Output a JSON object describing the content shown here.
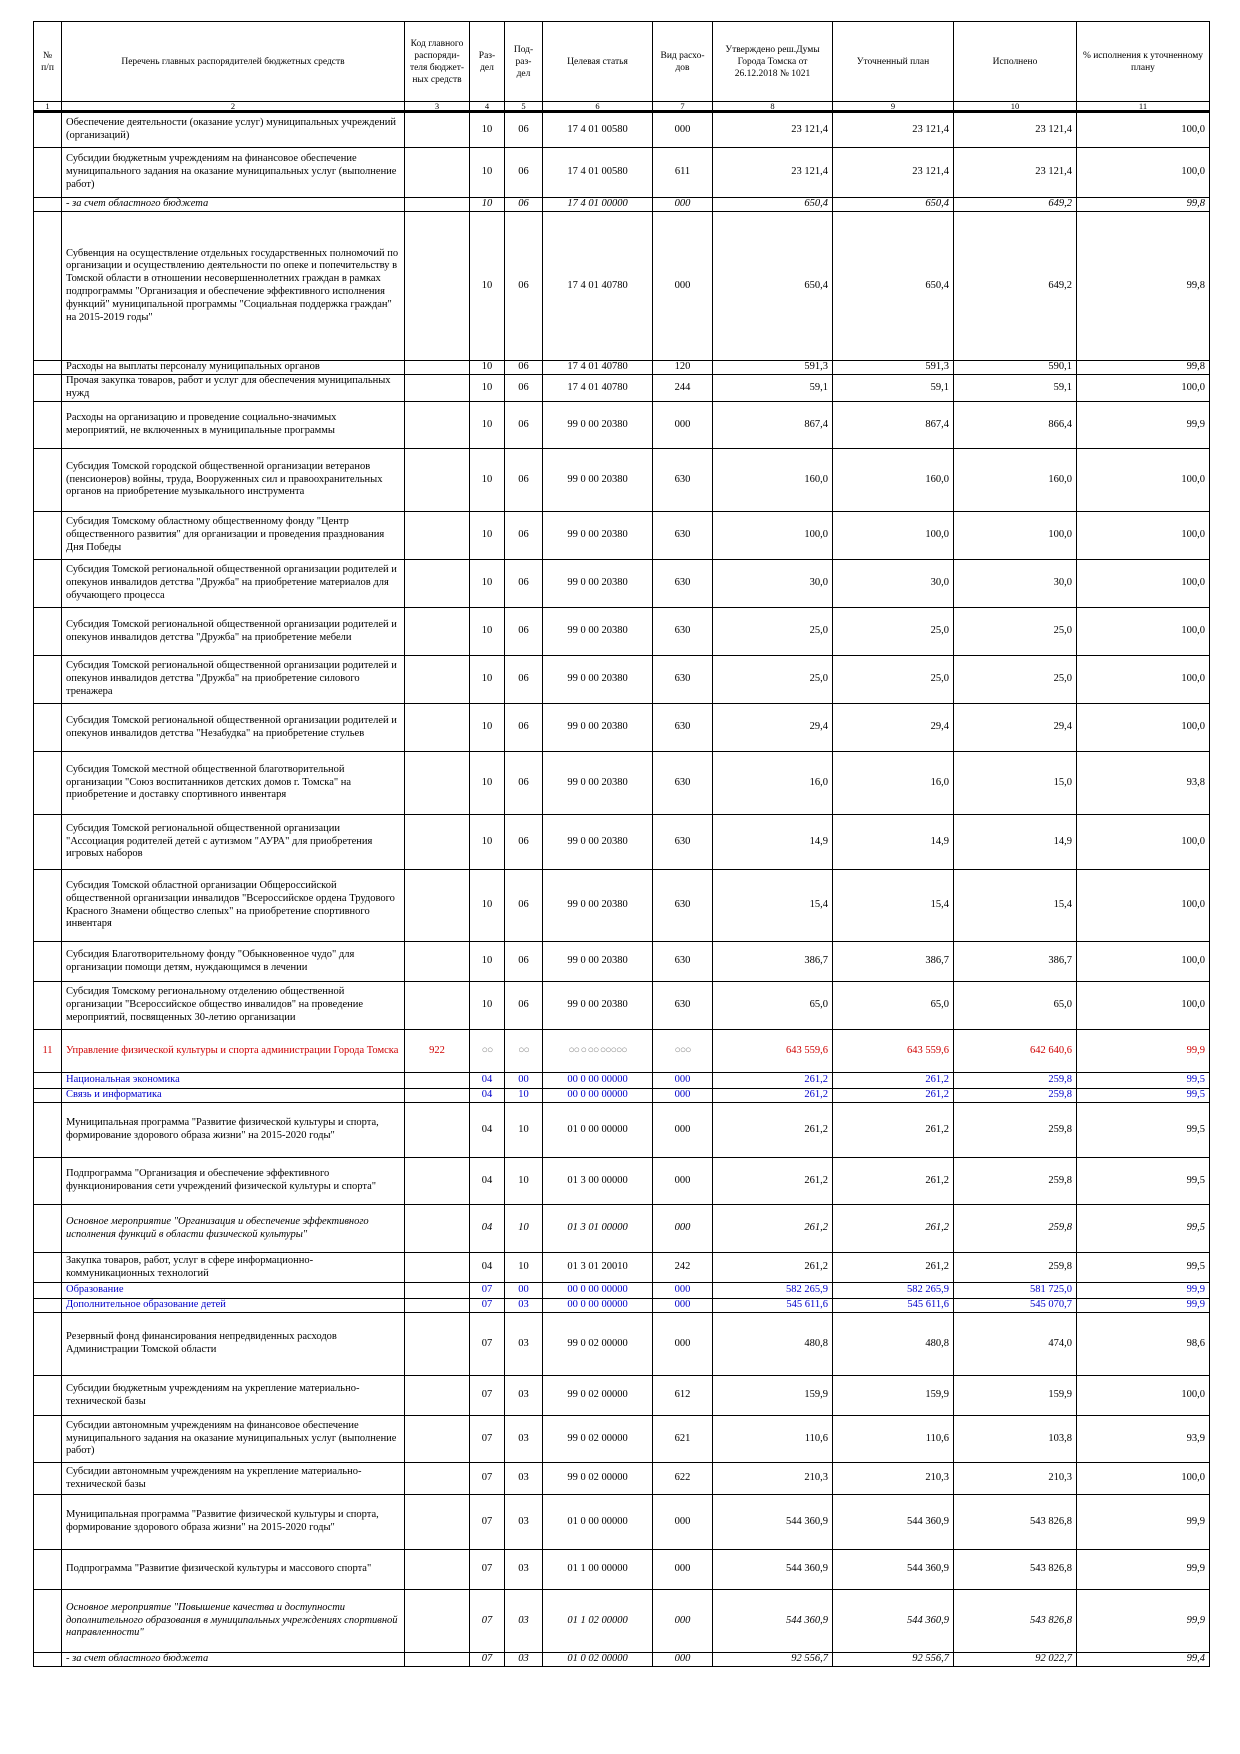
{
  "headers": [
    "№ п/п",
    "Перечень главных распорядителей бюджетных средств",
    "Код главного распоряди- теля бюджет- ных средств",
    "Раз- дел",
    "Под- раз- дел",
    "Целевая статья",
    "Вид расхо- дов",
    "Утверждено реш.Думы Города Томска от 26.12.2018 № 1021",
    "Уточненный план",
    "Исполнено",
    "% исполнения к уточненному плану"
  ],
  "column_numbers": [
    "1",
    "2",
    "3",
    "4",
    "5",
    "6",
    "7",
    "8",
    "9",
    "10",
    "11"
  ],
  "rows": [
    {
      "h": 36,
      "s": "",
      "d": "  Обеспечение деятельности (оказание услуг)  муниципальных учреждений (организаций)",
      "k": "",
      "r": "10",
      "p": "06",
      "t": "17 4 01 00580",
      "v": "000",
      "a": "23 121,4",
      "b": "23 121,4",
      "e": "23 121,4",
      "pc": "100,0"
    },
    {
      "h": 50,
      "s": "",
      "d": "    Субсидии бюджетным учреждениям на финансовое обеспечение муниципального задания на оказание муниципальных услуг (выполнение работ)",
      "k": "",
      "r": "10",
      "p": "06",
      "t": "17 4 01 00580",
      "v": "611",
      "a": "23 121,4",
      "b": "23 121,4",
      "e": "23 121,4",
      "pc": "100,0"
    },
    {
      "h": 14,
      "s": "i",
      "d": "  - за счет областного бюджета",
      "k": "",
      "r": "10",
      "p": "06",
      "t": "17 4 01 00000",
      "v": "000",
      "a": "650,4",
      "b": "650,4",
      "e": "649,2",
      "pc": "99,8"
    },
    {
      "h": 149,
      "s": "b",
      "d": "  Субвенция на осуществление отдельных государственных полномочий по организации и осуществлению деятельности по опеке и попечительству в Томской области в отношении несовершеннолетних граждан в рамках подпрограммы \"Организация и обеспечение эффективного исполнения функций\" муниципальной программы \"Социальная поддержка граждан\" на 2015-2019 годы\"",
      "k": "",
      "r": "10",
      "p": "06",
      "t": "17 4 01 40780",
      "v": "000",
      "a": "650,4",
      "b": "650,4",
      "e": "649,2",
      "pc": "99,8"
    },
    {
      "h": 14,
      "s": "",
      "d": "    Расходы на выплаты персоналу муниципальных органов",
      "k": "",
      "r": "10",
      "p": "06",
      "t": "17 4 01 40780",
      "v": "120",
      "a": "591,3",
      "b": "591,3",
      "e": "590,1",
      "pc": "99,8"
    },
    {
      "h": 27,
      "s": "",
      "d": "    Прочая закупка товаров, работ и услуг для обеспечения муниципальных нужд",
      "k": "",
      "r": "10",
      "p": "06",
      "t": "17 4 01 40780",
      "v": "244",
      "a": "59,1",
      "b": "59,1",
      "e": "59,1",
      "pc": "100,0"
    },
    {
      "h": 47,
      "s": "b",
      "d": "Расходы на организацию и проведение социально-значимых мероприятий, не включенных в муниципальные программы",
      "k": "",
      "r": "10",
      "p": "06",
      "t": "99 0 00 20380",
      "v": "000",
      "a": "867,4",
      "b": "867,4",
      "e": "866,4",
      "pc": "99,9"
    },
    {
      "h": 63,
      "s": "",
      "d": "Субсидия Томской городской общественной организации ветеранов (пенсионеров) войны, труда, Вооруженных сил и правоохранительных органов на приобретение музыкального инструмента",
      "k": "",
      "r": "10",
      "p": "06",
      "t": "99 0 00 20380",
      "v": "630",
      "a": "160,0",
      "b": "160,0",
      "e": "160,0",
      "pc": "100,0"
    },
    {
      "h": 48,
      "s": "",
      "d": "Субсидия Томскому областному общественному фонду \"Центр общественного развития\" для организации и проведения празднования Дня Победы",
      "k": "",
      "r": "10",
      "p": "06",
      "t": "99 0 00 20380",
      "v": "630",
      "a": "100,0",
      "b": "100,0",
      "e": "100,0",
      "pc": "100,0"
    },
    {
      "h": 48,
      "s": "",
      "d": "Субсидия Томской региональной общественной организации родителей и опекунов инвалидов детства \"Дружба\" на приобретение материалов для обучающего процесса",
      "k": "",
      "r": "10",
      "p": "06",
      "t": "99 0 00 20380",
      "v": "630",
      "a": "30,0",
      "b": "30,0",
      "e": "30,0",
      "pc": "100,0"
    },
    {
      "h": 48,
      "s": "",
      "d": "Субсидия Томской региональной общественной организации родителей и опекунов инвалидов детства \"Дружба\" на приобретение мебели",
      "k": "",
      "r": "10",
      "p": "06",
      "t": "99 0 00 20380",
      "v": "630",
      "a": "25,0",
      "b": "25,0",
      "e": "25,0",
      "pc": "100,0"
    },
    {
      "h": 48,
      "s": "",
      "d": "Субсидия Томской региональной общественной организации родителей и опекунов инвалидов детства \"Дружба\" на приобретение силового тренажера",
      "k": "",
      "r": "10",
      "p": "06",
      "t": "99 0 00 20380",
      "v": "630",
      "a": "25,0",
      "b": "25,0",
      "e": "25,0",
      "pc": "100,0"
    },
    {
      "h": 48,
      "s": "",
      "d": "Субсидия Томской региональной общественной организации родителей и опекунов инвалидов детства \"Незабудка\" на приобретение стульев",
      "k": "",
      "r": "10",
      "p": "06",
      "t": "99 0 00 20380",
      "v": "630",
      "a": "29,4",
      "b": "29,4",
      "e": "29,4",
      "pc": "100,0"
    },
    {
      "h": 63,
      "s": "",
      "d": "Субсидия Томской местной общественной благотворительной организации \"Союз воспитанников детских домов г. Томска\" на приобретение и доставку спортивного инвентаря",
      "k": "",
      "r": "10",
      "p": "06",
      "t": "99 0 00 20380",
      "v": "630",
      "a": "16,0",
      "b": "16,0",
      "e": "15,0",
      "pc": "93,8"
    },
    {
      "h": 55,
      "s": "",
      "d": "Субсидия Томской региональной общественной организации \"Ассоциация родителей детей с аутизмом \"АУРА\" для приобретения игровых наборов",
      "k": "",
      "r": "10",
      "p": "06",
      "t": "99 0 00 20380",
      "v": "630",
      "a": "14,9",
      "b": "14,9",
      "e": "14,9",
      "pc": "100,0"
    },
    {
      "h": 72,
      "s": "",
      "d": "Субсидия Томской областной организации Общероссийской общественной организации инвалидов \"Всероссийское ордена Трудового Красного Знамени общество слепых\" на приобретение спортивного инвентаря",
      "k": "",
      "r": "10",
      "p": "06",
      "t": "99 0 00 20380",
      "v": "630",
      "a": "15,4",
      "b": "15,4",
      "e": "15,4",
      "pc": "100,0"
    },
    {
      "h": 40,
      "s": "",
      "d": "Субсидия Благотворительному фонду \"Обыкновенное чудо\" для организации помощи детям, нуждающимся в лечении",
      "k": "",
      "r": "10",
      "p": "06",
      "t": "99 0 00 20380",
      "v": "630",
      "a": "386,7",
      "b": "386,7",
      "e": "386,7",
      "pc": "100,0"
    },
    {
      "h": 48,
      "s": "",
      "d": "Субсидия Томскому региональному отделению общественной организации \"Всероссийское общество инвалидов\" на проведение мероприятий, посвященных 30-летию организации",
      "k": "",
      "r": "10",
      "p": "06",
      "t": "99 0 00 20380",
      "v": "630",
      "a": "65,0",
      "b": "65,0",
      "e": "65,0",
      "pc": "100,0"
    },
    {
      "h": 43,
      "s": "red",
      "n": "11",
      "d": "Управление физической культуры и спорта администрации Города Томска",
      "k": "922",
      "r": "○○",
      "p": "○○",
      "t": "○○ ○ ○○ ○○○○○",
      "v": "○○○",
      "a": "643 559,6",
      "b": "643 559,6",
      "e": "642 640,6",
      "pc": "99,9"
    },
    {
      "h": 16,
      "s": "blue big",
      "d": "Национальная экономика",
      "k": "",
      "r": "04",
      "p": "00",
      "t": "00 0 00 00000",
      "v": "000",
      "a": "261,2",
      "b": "261,2",
      "e": "259,8",
      "pc": "99,5"
    },
    {
      "h": 14,
      "s": "blue sm",
      "d": "Связь и информатика",
      "k": "",
      "r": "04",
      "p": "10",
      "t": "00 0 00 00000",
      "v": "000",
      "a": "261,2",
      "b": "261,2",
      "e": "259,8",
      "pc": "99,5"
    },
    {
      "h": 55,
      "s": "b",
      "d": "Муниципальная программа \"Развитие физической культуры и спорта, формирование здорового образа жизни\" на 2015-2020 годы\"",
      "k": "",
      "r": "04",
      "p": "10",
      "t": "01 0 00 00000",
      "v": "000",
      "a": "261,2",
      "b": "261,2",
      "e": "259,8",
      "pc": "99,5"
    },
    {
      "h": 47,
      "s": "b",
      "d": "Подпрограмма \"Организация и обеспечение эффективного функционирования сети учреждений физической культуры и спорта\"",
      "k": "",
      "r": "04",
      "p": "10",
      "t": "01 3 00 00000",
      "v": "000",
      "a": "261,2",
      "b": "261,2",
      "e": "259,8",
      "pc": "99,5"
    },
    {
      "h": 48,
      "s": "bi",
      "d": " Основное мероприятие \"Организация и обеспечение эффективного исполнения функций в области физической культуры\"",
      "k": "",
      "r": "04",
      "p": "10",
      "t": "01 3 01 00000",
      "v": "000",
      "a": "261,2",
      "b": "261,2",
      "e": "259,8",
      "pc": "99,5"
    },
    {
      "h": 30,
      "s": "",
      "d": "    Закупка товаров, работ, услуг в сфере информационно-коммуникационных технологий",
      "k": "",
      "r": "04",
      "p": "10",
      "t": "01 3 01 20010",
      "v": "242",
      "a": "261,2",
      "b": "261,2",
      "e": "259,8",
      "pc": "99,5"
    },
    {
      "h": 16,
      "s": "blue big",
      "d": "Образование",
      "k": "",
      "r": "07",
      "p": "00",
      "t": "00 0 00 00000",
      "v": "000",
      "a": "582 265,9",
      "b": "582 265,9",
      "e": "581 725,0",
      "pc": "99,9"
    },
    {
      "h": 14,
      "s": "blue sm",
      "d": "Дополнительное образование детей",
      "k": "",
      "r": "07",
      "p": "03",
      "t": "00 0 00 00000",
      "v": "000",
      "a": "545 611,6",
      "b": "545 611,6",
      "e": "545 070,7",
      "pc": "99,9"
    },
    {
      "h": 63,
      "s": "b",
      "d": "Резервный фонд финансирования непредвиденных расходов Администрации Томской области",
      "k": "",
      "r": "07",
      "p": "03",
      "t": "99 0 02 00000",
      "v": "000",
      "a": "480,8",
      "b": "480,8",
      "e": "474,0",
      "pc": "98,6"
    },
    {
      "h": 40,
      "s": "",
      "d": "Субсидии бюджетным учреждениям на укрепление материально-технической базы",
      "k": "",
      "r": "07",
      "p": "03",
      "t": "99 0 02 00000",
      "v": "612",
      "a": "159,9",
      "b": "159,9",
      "e": "159,9",
      "pc": "100,0"
    },
    {
      "h": 47,
      "s": "",
      "d": "   Субсидии автономным учреждениям на финансовое обеспечение муниципального задания на оказание муниципальных услуг (выполнение работ)",
      "k": "",
      "r": "07",
      "p": "03",
      "t": "99 0 02 00000",
      "v": "621",
      "a": "110,6",
      "b": "110,6",
      "e": "103,8",
      "pc": "93,9"
    },
    {
      "h": 32,
      "s": "",
      "d": "Субсидии автономным учреждениям на укрепление материально-технической базы",
      "k": "",
      "r": "07",
      "p": "03",
      "t": "99 0 02 00000",
      "v": "622",
      "a": "210,3",
      "b": "210,3",
      "e": "210,3",
      "pc": "100,0"
    },
    {
      "h": 55,
      "s": "b",
      "d": "Муниципальная программа \"Развитие физической культуры и спорта, формирование здорового образа жизни\" на 2015-2020 годы\"",
      "k": "",
      "r": "07",
      "p": "03",
      "t": "01 0 00 00000",
      "v": "000",
      "a": "544 360,9",
      "b": "544 360,9",
      "e": "543 826,8",
      "pc": "99,9"
    },
    {
      "h": 40,
      "s": "b",
      "d": "Подпрограмма \"Развитие физической культуры и массового спорта\"",
      "k": "",
      "r": "07",
      "p": "03",
      "t": "01 1 00 00000",
      "v": "000",
      "a": "544 360,9",
      "b": "544 360,9",
      "e": "543 826,8",
      "pc": "99,9"
    },
    {
      "h": 63,
      "s": "bi",
      "d": " Основное мероприятие \"Повышение качества и доступности дополнительного образования в муниципальных учреждениях спортивной направленности\"",
      "k": "",
      "r": "07",
      "p": "03",
      "t": "01 1 02 00000",
      "v": "000",
      "a": "544 360,9",
      "b": "544 360,9",
      "e": "543 826,8",
      "pc": "99,9"
    },
    {
      "h": 14,
      "s": "i",
      "d": "  - за счет областного бюджета",
      "k": "",
      "r": "07",
      "p": "03",
      "t": "01 0 02 00000",
      "v": "000",
      "a": "92 556,7",
      "b": "92 556,7",
      "e": "92 022,7",
      "pc": "99,4"
    }
  ]
}
